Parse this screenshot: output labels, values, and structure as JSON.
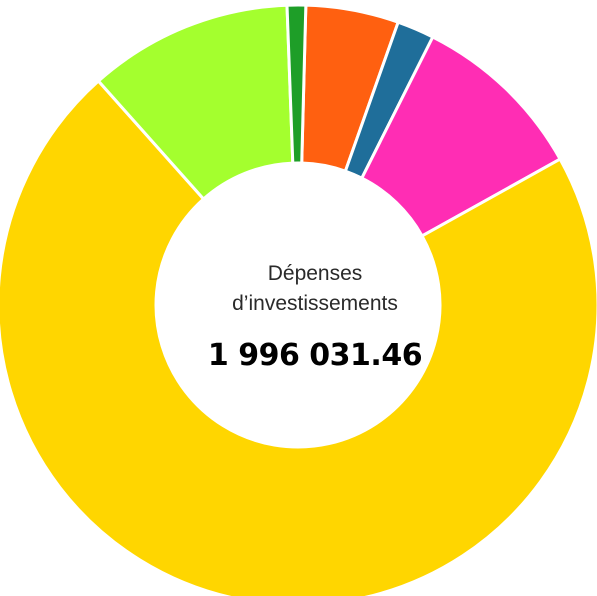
{
  "chart_data": {
    "type": "pie",
    "donut": true,
    "title": "",
    "center_label_line1": "Dépenses",
    "center_label_line2": "d’investissements",
    "center_value": "1 996 031.46",
    "segments": [
      {
        "value": 5.0,
        "color": "#FF6010"
      },
      {
        "value": 2.0,
        "color": "#1F6E9A"
      },
      {
        "value": 9.5,
        "color": "#FF2DB4"
      },
      {
        "value": 71.5,
        "color": "#FFD600"
      },
      {
        "value": 11.0,
        "color": "#A4FF2E"
      },
      {
        "value": 1.0,
        "color": "#1E9E28"
      }
    ],
    "legend": false
  }
}
